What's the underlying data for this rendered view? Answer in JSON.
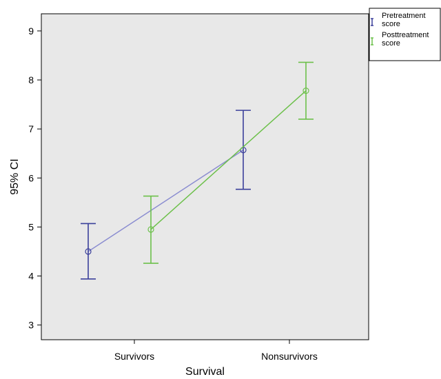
{
  "chart_data": {
    "type": "line",
    "xlabel": "Survival",
    "ylabel": "95% CI",
    "categories": [
      "Survivors",
      "Nonsurvivors"
    ],
    "ylim": [
      2.7,
      9.35
    ],
    "yticks": [
      3,
      4,
      5,
      6,
      7,
      8,
      9
    ],
    "grid": false,
    "legend_position": "top-right",
    "plot_background": "#e8e8e8",
    "series": [
      {
        "name": "Pretreatment score",
        "color": "#3a3f9a",
        "line_color": "#8a8cd0",
        "mean": [
          4.5,
          6.57
        ],
        "lower": [
          3.94,
          5.77
        ],
        "upper": [
          5.07,
          7.38
        ]
      },
      {
        "name": "Posttreatment score",
        "color": "#6cc04a",
        "line_color": "#6cc04a",
        "mean": [
          4.95,
          7.78
        ],
        "lower": [
          4.26,
          7.2
        ],
        "upper": [
          5.63,
          8.36
        ]
      }
    ]
  }
}
